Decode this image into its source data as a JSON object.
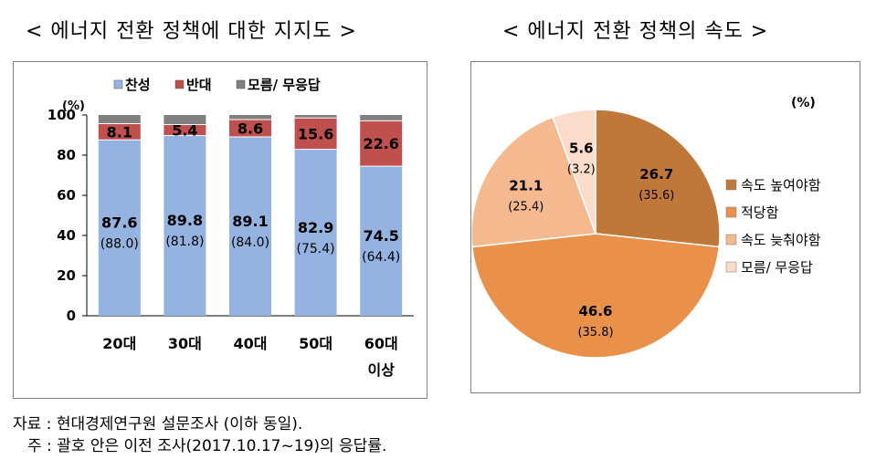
{
  "titles": {
    "left": "< 에너지 전환 정책에 대한 지지도 >",
    "right": "< 에너지 전환 정책의 속도 >"
  },
  "footnotes": {
    "source": "자료 : 현대경제연구원 설문조사 (이하 동일).",
    "note": "주 : 괄호 안은 이전 조사(2017.10.17~19)의 응답률."
  },
  "colors": {
    "support": "#95B3E0",
    "oppose": "#C0504D",
    "noans": "#808080",
    "pie_speed_up": "#C0773A",
    "pie_adequate": "#E9914A",
    "pie_slow_down": "#F5B98F",
    "pie_noans": "#FBDCCB"
  },
  "chart_data": [
    {
      "type": "bar",
      "stacked": true,
      "title": "에너지 전환 정책에 대한 지지도",
      "categories": [
        "20대",
        "30대",
        "40대",
        "50대",
        "60대 이상"
      ],
      "category_lines": [
        [
          "20대"
        ],
        [
          "30대"
        ],
        [
          "40대"
        ],
        [
          "50대"
        ],
        [
          "60대",
          "이상"
        ]
      ],
      "unit": "(%)",
      "series": [
        {
          "name": "찬성",
          "values": [
            87.6,
            89.8,
            89.1,
            82.9,
            74.5
          ],
          "previous": [
            88.0,
            81.8,
            84.0,
            75.4,
            64.4
          ],
          "labels": [
            "87.6",
            "89.8",
            "89.1",
            "82.9",
            "74.5"
          ],
          "previous_labels": [
            "(88.0)",
            "(81.8)",
            "(84.0)",
            "(75.4)",
            "(64.4)"
          ]
        },
        {
          "name": "반대",
          "values": [
            8.1,
            5.4,
            8.6,
            15.6,
            22.6
          ],
          "labels": [
            "8.1",
            "5.4",
            "8.6",
            "15.6",
            "22.6"
          ]
        },
        {
          "name": "모름/ 무응답",
          "values": [
            4.3,
            4.8,
            2.3,
            1.5,
            2.9
          ]
        }
      ],
      "ylim": [
        0,
        100
      ],
      "yticks": [
        "0",
        "20",
        "40",
        "60",
        "80",
        "100"
      ],
      "legend_position": "top",
      "grid": false
    },
    {
      "type": "pie",
      "title": "에너지 전환 정책의 속도",
      "unit": "(%)",
      "slices": [
        {
          "name": "속도 높여야함",
          "value": 26.7,
          "previous": 35.6,
          "label": "26.7",
          "previous_label": "(35.6)"
        },
        {
          "name": "적당함",
          "value": 46.6,
          "previous": 35.8,
          "label": "46.6",
          "previous_label": "(35.8)"
        },
        {
          "name": "속도 늦춰야함",
          "value": 21.1,
          "previous": 25.4,
          "label": "21.1",
          "previous_label": "(25.4)"
        },
        {
          "name": "모름/ 무응답",
          "value": 5.6,
          "previous": 3.2,
          "label": "5.6",
          "previous_label": "(3.2)"
        }
      ],
      "legend_position": "right"
    }
  ]
}
